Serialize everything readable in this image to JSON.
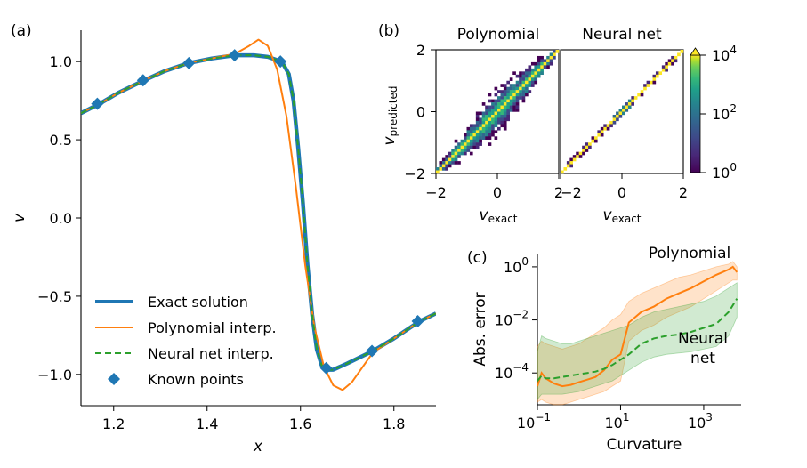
{
  "chart_data": [
    {
      "panel": "(a)",
      "type": "line",
      "xlabel": "x",
      "ylabel": "v",
      "xlim": [
        1.13,
        1.89
      ],
      "ylim": [
        -1.2,
        1.2
      ],
      "xticks": [
        1.2,
        1.4,
        1.6,
        1.8
      ],
      "xtick_labels": [
        "1.2",
        "1.4",
        "1.6",
        "1.8"
      ],
      "yticks": [
        1.0,
        0.5,
        0.0,
        -0.5,
        -1.0
      ],
      "ytick_labels": [
        "1.0",
        "0.5",
        "0.0",
        "−0.5",
        "−1.0"
      ],
      "legend_position": "lower-left",
      "series": [
        {
          "name": "Exact solution",
          "color": "#1f77b4",
          "style": "solid-thick",
          "x": [
            1.13,
            1.17,
            1.21,
            1.265,
            1.31,
            1.36,
            1.41,
            1.46,
            1.5,
            1.53,
            1.56,
            1.575,
            1.585,
            1.595,
            1.605,
            1.615,
            1.625,
            1.635,
            1.645,
            1.655,
            1.67,
            1.7,
            1.755,
            1.8,
            1.855,
            1.89
          ],
          "y": [
            0.67,
            0.73,
            0.8,
            0.88,
            0.94,
            0.99,
            1.02,
            1.04,
            1.04,
            1.03,
            1.0,
            0.92,
            0.75,
            0.45,
            0.1,
            -0.3,
            -0.62,
            -0.84,
            -0.94,
            -0.97,
            -0.97,
            -0.93,
            -0.85,
            -0.77,
            -0.66,
            -0.61
          ]
        },
        {
          "name": "Polynomial interp.",
          "color": "#ff7f0e",
          "style": "solid",
          "x": [
            1.13,
            1.17,
            1.21,
            1.265,
            1.31,
            1.36,
            1.41,
            1.46,
            1.49,
            1.51,
            1.53,
            1.55,
            1.57,
            1.59,
            1.61,
            1.63,
            1.65,
            1.67,
            1.69,
            1.71,
            1.755,
            1.8,
            1.855,
            1.89
          ],
          "y": [
            0.67,
            0.73,
            0.8,
            0.88,
            0.94,
            0.99,
            1.02,
            1.05,
            1.1,
            1.14,
            1.1,
            0.95,
            0.65,
            0.2,
            -0.3,
            -0.7,
            -0.95,
            -1.07,
            -1.1,
            -1.05,
            -0.86,
            -0.77,
            -0.66,
            -0.61
          ]
        },
        {
          "name": "Neural net interp.",
          "color": "#2ca02c",
          "style": "dashed",
          "x": [
            1.13,
            1.17,
            1.21,
            1.265,
            1.31,
            1.36,
            1.41,
            1.46,
            1.5,
            1.53,
            1.56,
            1.575,
            1.585,
            1.595,
            1.605,
            1.615,
            1.625,
            1.635,
            1.645,
            1.655,
            1.67,
            1.7,
            1.755,
            1.8,
            1.855,
            1.89
          ],
          "y": [
            0.67,
            0.73,
            0.8,
            0.88,
            0.94,
            0.99,
            1.02,
            1.04,
            1.04,
            1.03,
            1.0,
            0.92,
            0.75,
            0.45,
            0.1,
            -0.3,
            -0.62,
            -0.84,
            -0.94,
            -0.97,
            -0.97,
            -0.93,
            -0.85,
            -0.77,
            -0.66,
            -0.61
          ]
        },
        {
          "name": "Known points",
          "color": "#1f77b4",
          "style": "markers",
          "x": [
            1.165,
            1.263,
            1.361,
            1.459,
            1.557,
            1.655,
            1.753,
            1.851
          ],
          "y": [
            0.73,
            0.88,
            0.99,
            1.04,
            1.0,
            -0.96,
            -0.85,
            -0.66
          ]
        }
      ]
    },
    {
      "panel": "(b)",
      "type": "heatmap",
      "subplot_titles": [
        "Polynomial",
        "Neural net"
      ],
      "xlabel_base": "v",
      "xlabel_sub": "exact",
      "ylabel_base": "v",
      "ylabel_sub": "predicted",
      "xlim": [
        -2,
        2
      ],
      "ylim": [
        -2,
        2
      ],
      "left_xtick_labels": [
        "−2",
        "0",
        "2"
      ],
      "right_xtick_labels": [
        "−2",
        "0",
        "2"
      ],
      "ytick_labels": [
        "2",
        "0",
        "−2"
      ],
      "colorbar": {
        "scale": "log",
        "tick_bases": [
          "10",
          "10",
          "10"
        ],
        "tick_exps": [
          "4",
          "2",
          "0"
        ],
        "range": [
          1,
          10000
        ],
        "colormap": "viridis"
      },
      "polynomial_band": {
        "center_slope": 1.0,
        "spread_center": 0.7,
        "spread_edges": 0.2,
        "diagonal_density": "high"
      },
      "neural_net_band": {
        "center_slope": 1.0,
        "spread_center": 0.15,
        "spread_edges": 0.1,
        "diagonal_density": "high"
      }
    },
    {
      "panel": "(c)",
      "type": "line",
      "xlabel": "Curvature",
      "ylabel": "Abs. error",
      "xscale": "log",
      "yscale": "log",
      "xlim_exp": [
        -1,
        3.9
      ],
      "ylim_exp": [
        -5.2,
        0.5
      ],
      "xtick_exps": [
        -1,
        1,
        3
      ],
      "ytick_exps": [
        0,
        -2,
        -4
      ],
      "tick_base": "10",
      "xtick_exp_labels": [
        "−1",
        "1",
        "3"
      ],
      "ytick_exp_labels": [
        "0",
        "−2",
        "−4"
      ],
      "series": [
        {
          "name": "Polynomial",
          "color": "#ff7f0e",
          "log10_curvature": [
            -1.0,
            -0.9,
            -0.8,
            -0.6,
            -0.4,
            -0.2,
            0.0,
            0.2,
            0.4,
            0.6,
            0.8,
            1.0,
            1.2,
            1.5,
            1.8,
            2.1,
            2.4,
            2.7,
            3.0,
            3.3,
            3.6,
            3.7,
            3.8
          ],
          "log10_error": [
            -4.5,
            -4.0,
            -4.2,
            -4.4,
            -4.5,
            -4.45,
            -4.35,
            -4.25,
            -4.15,
            -3.9,
            -3.5,
            -3.3,
            -2.1,
            -1.7,
            -1.5,
            -1.2,
            -1.0,
            -0.8,
            -0.55,
            -0.3,
            -0.1,
            0.0,
            -0.2
          ],
          "band_upper": [
            -3.0,
            -2.8,
            -2.9,
            -3.0,
            -3.1,
            -3.0,
            -2.9,
            -2.7,
            -2.5,
            -2.3,
            -2.0,
            -1.8,
            -1.3,
            -1.0,
            -0.8,
            -0.6,
            -0.4,
            -0.3,
            -0.15,
            0.0,
            0.1,
            0.2,
            0.0
          ],
          "band_lower": [
            -5.1,
            -5.0,
            -5.1,
            -5.2,
            -5.2,
            -5.1,
            -5.0,
            -4.9,
            -4.8,
            -4.7,
            -4.5,
            -4.3,
            -2.8,
            -2.4,
            -2.2,
            -1.9,
            -1.7,
            -1.5,
            -1.2,
            -0.9,
            -0.6,
            -0.5,
            -0.5
          ]
        },
        {
          "name": "Neural net",
          "color": "#2ca02c",
          "log10_curvature": [
            -1.0,
            -0.9,
            -0.8,
            -0.6,
            -0.4,
            -0.2,
            0.0,
            0.2,
            0.4,
            0.6,
            0.8,
            1.0,
            1.2,
            1.5,
            1.8,
            2.1,
            2.4,
            2.7,
            3.0,
            3.3,
            3.6,
            3.8
          ],
          "log10_error": [
            -4.3,
            -4.1,
            -4.2,
            -4.2,
            -4.15,
            -4.1,
            -4.05,
            -4.0,
            -3.95,
            -3.85,
            -3.7,
            -3.5,
            -3.3,
            -2.9,
            -2.7,
            -2.6,
            -2.55,
            -2.45,
            -2.3,
            -2.15,
            -1.7,
            -1.2
          ],
          "band_upper": [
            -3.2,
            -2.6,
            -2.7,
            -2.8,
            -2.9,
            -2.9,
            -2.8,
            -2.7,
            -2.6,
            -2.5,
            -2.4,
            -2.3,
            -2.2,
            -1.9,
            -1.7,
            -1.6,
            -1.5,
            -1.4,
            -1.3,
            -1.1,
            -0.8,
            -0.6
          ],
          "band_lower": [
            -5.0,
            -4.8,
            -4.8,
            -4.8,
            -4.8,
            -4.75,
            -4.7,
            -4.6,
            -4.5,
            -4.4,
            -4.3,
            -4.1,
            -3.9,
            -3.6,
            -3.4,
            -3.3,
            -3.25,
            -3.2,
            -3.1,
            -3.0,
            -2.6,
            -1.9
          ]
        }
      ],
      "annotations": [
        "Polynomial",
        "Neural",
        "net"
      ]
    }
  ]
}
